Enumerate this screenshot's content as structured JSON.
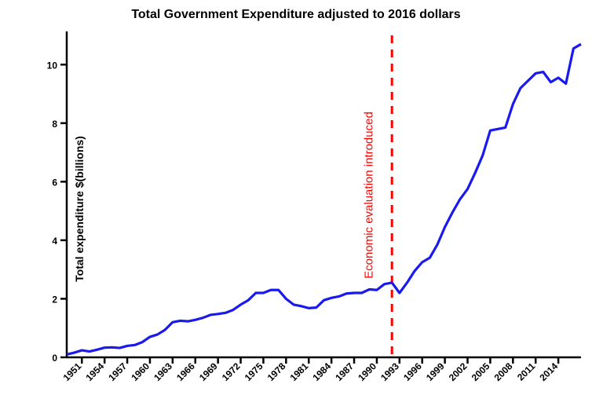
{
  "chart": {
    "type": "line",
    "title": "Total Government Expenditure adjusted to 2016 dollars",
    "ylabel": "Total expenditure $(billions)",
    "title_fontsize": 16,
    "label_fontsize": 14,
    "tick_fontsize": 12,
    "background_color": "#ffffff",
    "line_color": "#1a1aee",
    "line_width": 3.2,
    "axis_color": "#000000",
    "axis_width": 2.5,
    "x": {
      "min": 1949,
      "max": 2017,
      "ticks": [
        1951,
        1954,
        1957,
        1960,
        1963,
        1966,
        1969,
        1972,
        1975,
        1978,
        1981,
        1984,
        1987,
        1990,
        1993,
        1996,
        1999,
        2002,
        2005,
        2008,
        2011,
        2014
      ],
      "tick_rotation": -45
    },
    "y": {
      "min": 0,
      "max": 11,
      "ticks": [
        0,
        2,
        4,
        6,
        8,
        10
      ]
    },
    "reference_line": {
      "x": 1992,
      "color": "#ff0000",
      "width": 3,
      "dash": "10,8"
    },
    "annotation": {
      "text": "Economic evaluation introduced",
      "color": "#ff0000",
      "fontsize": 15,
      "x": 1990,
      "rotation": -90
    },
    "series": [
      {
        "x": 1949,
        "y": 0.1
      },
      {
        "x": 1950,
        "y": 0.16
      },
      {
        "x": 1951,
        "y": 0.24
      },
      {
        "x": 1952,
        "y": 0.2
      },
      {
        "x": 1953,
        "y": 0.26
      },
      {
        "x": 1954,
        "y": 0.33
      },
      {
        "x": 1955,
        "y": 0.34
      },
      {
        "x": 1956,
        "y": 0.32
      },
      {
        "x": 1957,
        "y": 0.39
      },
      {
        "x": 1958,
        "y": 0.42
      },
      {
        "x": 1959,
        "y": 0.52
      },
      {
        "x": 1960,
        "y": 0.7
      },
      {
        "x": 1961,
        "y": 0.78
      },
      {
        "x": 1962,
        "y": 0.94
      },
      {
        "x": 1963,
        "y": 1.2
      },
      {
        "x": 1964,
        "y": 1.25
      },
      {
        "x": 1965,
        "y": 1.23
      },
      {
        "x": 1966,
        "y": 1.28
      },
      {
        "x": 1967,
        "y": 1.35
      },
      {
        "x": 1968,
        "y": 1.45
      },
      {
        "x": 1969,
        "y": 1.48
      },
      {
        "x": 1970,
        "y": 1.52
      },
      {
        "x": 1971,
        "y": 1.62
      },
      {
        "x": 1972,
        "y": 1.8
      },
      {
        "x": 1973,
        "y": 1.95
      },
      {
        "x": 1974,
        "y": 2.2
      },
      {
        "x": 1975,
        "y": 2.2
      },
      {
        "x": 1976,
        "y": 2.3
      },
      {
        "x": 1977,
        "y": 2.3
      },
      {
        "x": 1978,
        "y": 2.0
      },
      {
        "x": 1979,
        "y": 1.8
      },
      {
        "x": 1980,
        "y": 1.75
      },
      {
        "x": 1981,
        "y": 1.68
      },
      {
        "x": 1982,
        "y": 1.7
      },
      {
        "x": 1983,
        "y": 1.95
      },
      {
        "x": 1984,
        "y": 2.03
      },
      {
        "x": 1985,
        "y": 2.08
      },
      {
        "x": 1986,
        "y": 2.18
      },
      {
        "x": 1987,
        "y": 2.2
      },
      {
        "x": 1988,
        "y": 2.2
      },
      {
        "x": 1989,
        "y": 2.32
      },
      {
        "x": 1990,
        "y": 2.3
      },
      {
        "x": 1991,
        "y": 2.5
      },
      {
        "x": 1992,
        "y": 2.55
      },
      {
        "x": 1993,
        "y": 2.2
      },
      {
        "x": 1994,
        "y": 2.55
      },
      {
        "x": 1995,
        "y": 2.95
      },
      {
        "x": 1996,
        "y": 3.25
      },
      {
        "x": 1997,
        "y": 3.4
      },
      {
        "x": 1998,
        "y": 3.85
      },
      {
        "x": 1999,
        "y": 4.45
      },
      {
        "x": 2000,
        "y": 4.95
      },
      {
        "x": 2001,
        "y": 5.4
      },
      {
        "x": 2002,
        "y": 5.75
      },
      {
        "x": 2003,
        "y": 6.3
      },
      {
        "x": 2004,
        "y": 6.9
      },
      {
        "x": 2005,
        "y": 7.75
      },
      {
        "x": 2006,
        "y": 7.8
      },
      {
        "x": 2007,
        "y": 7.85
      },
      {
        "x": 2008,
        "y": 8.65
      },
      {
        "x": 2009,
        "y": 9.2
      },
      {
        "x": 2010,
        "y": 9.45
      },
      {
        "x": 2011,
        "y": 9.7
      },
      {
        "x": 2012,
        "y": 9.75
      },
      {
        "x": 2013,
        "y": 9.4
      },
      {
        "x": 2014,
        "y": 9.55
      },
      {
        "x": 2015,
        "y": 9.35
      },
      {
        "x": 2016,
        "y": 10.55
      },
      {
        "x": 2017,
        "y": 10.7
      }
    ]
  }
}
